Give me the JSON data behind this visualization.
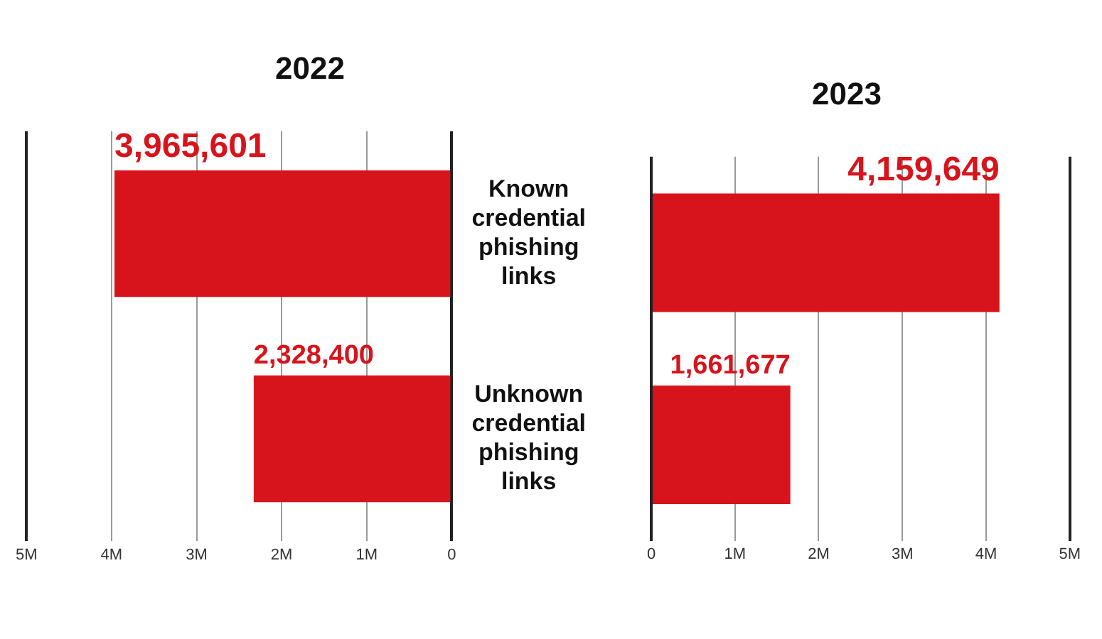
{
  "chart_data": [
    {
      "type": "bar",
      "orientation": "horizontal",
      "title": "2022",
      "categories": [
        "Known credential phishing links",
        "Unknown credential phishing links"
      ],
      "values": [
        3965601,
        2328400
      ],
      "value_labels": [
        "3,965,601",
        "2,328,400"
      ],
      "color": "#d7141c",
      "xlim": [
        5000000,
        0
      ],
      "xticks": [
        {
          "value": 5000000,
          "label": "5M"
        },
        {
          "value": 4000000,
          "label": "4M"
        },
        {
          "value": 3000000,
          "label": "3M"
        },
        {
          "value": 2000000,
          "label": "2M"
        },
        {
          "value": 1000000,
          "label": "1M"
        },
        0
      ],
      "grid": "x",
      "legend": false
    },
    {
      "type": "bar",
      "orientation": "horizontal",
      "title": "2023",
      "categories": [
        null,
        null
      ],
      "values": [
        4159649,
        1661677
      ],
      "value_labels": [
        "4,159,649",
        "1,661,677"
      ],
      "color": "#d7141c",
      "xlim": [
        0,
        5000000
      ],
      "xticks": [
        0,
        {
          "value": 1000000,
          "label": "1M"
        },
        {
          "value": 2000000,
          "label": "2M"
        },
        {
          "value": 3000000,
          "label": "3M"
        },
        {
          "value": 4000000,
          "label": "4M"
        },
        {
          "value": 5000000,
          "label": "5M"
        }
      ],
      "grid": "x",
      "legend": false
    }
  ]
}
